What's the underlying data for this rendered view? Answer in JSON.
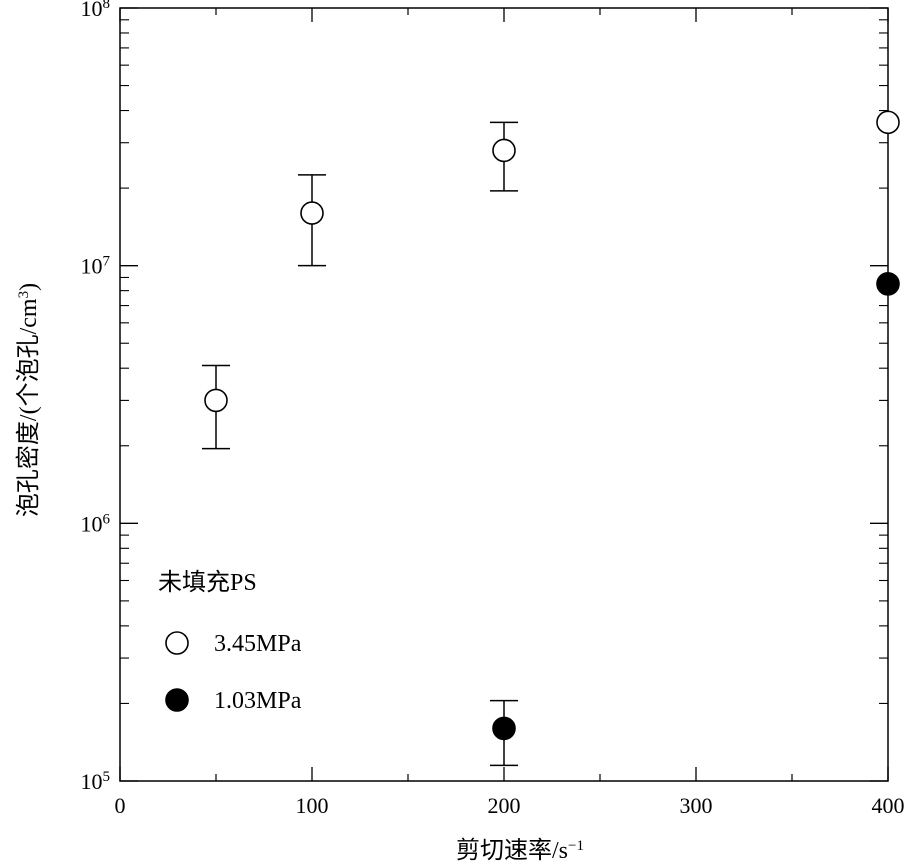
{
  "chart_data": {
    "type": "scatter",
    "title": "",
    "xlabel": "剪切速率/s",
    "xlabel_exponent": "−1",
    "ylabel": "泡孔密度/(个泡孔/cm",
    "ylabel_exponent": "3",
    "ylabel_suffix": ")",
    "xlim": [
      0,
      400
    ],
    "ylim": [
      100000,
      100000000
    ],
    "yscale": "log",
    "x_ticks": [
      {
        "value": 0,
        "label": "0"
      },
      {
        "value": 100,
        "label": "100"
      },
      {
        "value": 200,
        "label": "200"
      },
      {
        "value": 300,
        "label": "300"
      },
      {
        "value": 400,
        "label": "400"
      }
    ],
    "y_ticks": [
      {
        "value": 100000,
        "base": "10",
        "exp": "5"
      },
      {
        "value": 1000000,
        "base": "10",
        "exp": "6"
      },
      {
        "value": 10000000,
        "base": "10",
        "exp": "7"
      },
      {
        "value": 100000000,
        "base": "10",
        "exp": "8"
      }
    ],
    "legend": {
      "title": "未填充PS",
      "placement": "bottom-left"
    },
    "series": [
      {
        "name": "3.45MPa",
        "marker": "open-circle",
        "points": [
          {
            "x": 50,
            "y": 3000000,
            "err_low": 1950000,
            "err_high": 4100000
          },
          {
            "x": 100,
            "y": 16000000,
            "err_low": 10000000,
            "err_high": 22500000
          },
          {
            "x": 200,
            "y": 28000000,
            "err_low": 19500000,
            "err_high": 36000000
          },
          {
            "x": 400,
            "y": 36000000
          }
        ]
      },
      {
        "name": "1.03MPa",
        "marker": "filled-circle",
        "points": [
          {
            "x": 200,
            "y": 160000,
            "err_low": 115000,
            "err_high": 205000
          },
          {
            "x": 400,
            "y": 8500000
          }
        ]
      }
    ],
    "grid": false
  }
}
